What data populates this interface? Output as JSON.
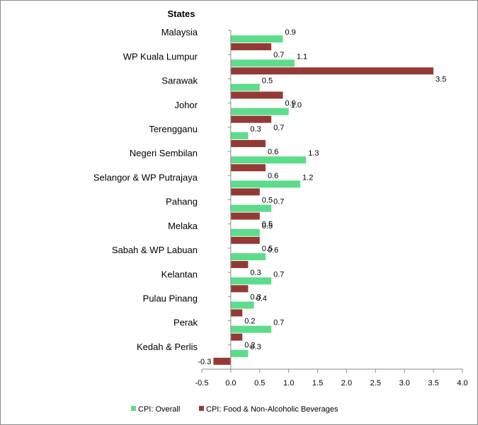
{
  "chart_data": {
    "type": "bar",
    "orientation": "horizontal",
    "header_label": "States",
    "categories": [
      "Malaysia",
      "WP Kuala Lumpur",
      "Sarawak",
      "Johor",
      "Terengganu",
      "Negeri Sembilan",
      "Selangor & WP Putrajaya",
      "Pahang",
      "Melaka",
      "Sabah & WP Labuan",
      "Kelantan",
      "Pulau Pinang",
      "Perak",
      "Kedah & Perlis"
    ],
    "series": [
      {
        "name": "CPI: Overall",
        "color": "#5ddc8b",
        "values": [
          0.9,
          1.1,
          0.5,
          1.0,
          0.3,
          1.3,
          1.2,
          0.7,
          0.5,
          0.6,
          0.7,
          0.4,
          0.7,
          0.3
        ],
        "labels": [
          "0.9",
          "1.1",
          "0.5",
          "1.0",
          "0.3",
          "1.3",
          "1.2",
          "0.7",
          "0.5",
          "0.6",
          "0.7",
          "0.4",
          "0.7",
          "0.3"
        ]
      },
      {
        "name": "CPI: Food & Non-Alcoholic Beverages",
        "color": "#943a36",
        "values": [
          0.7,
          3.5,
          0.9,
          0.7,
          0.6,
          0.6,
          0.5,
          0.5,
          0.5,
          0.3,
          0.3,
          0.2,
          0.2,
          -0.3
        ],
        "labels": [
          "0.7",
          "3.5",
          "0.9",
          "0.7",
          "0.6",
          "0.6",
          "0.5",
          "0.5",
          "0.5",
          "0.3",
          "0.3",
          "0.2",
          "0.2",
          "-0.3"
        ]
      }
    ],
    "xlim": [
      -0.5,
      4.0
    ],
    "xticks": [
      "-0.5",
      "0.0",
      "0.5",
      "1.0",
      "1.5",
      "2.0",
      "2.5",
      "3.0",
      "3.5",
      "4.0"
    ],
    "grid": false,
    "legend_position": "bottom"
  }
}
